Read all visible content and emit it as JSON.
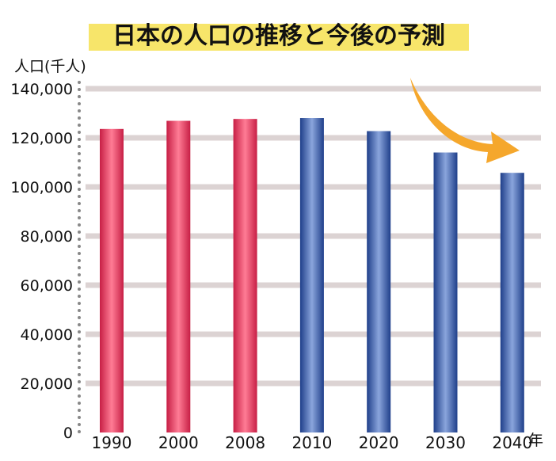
{
  "chart_data": {
    "type": "bar",
    "title": "日本の人口の推移と今後の予測",
    "ylabel": "人口(千人)",
    "xlabel": "年",
    "categories": [
      "1990",
      "2000",
      "2008",
      "2010",
      "2020",
      "2030",
      "2040"
    ],
    "series": [
      {
        "values": [
          123611,
          126926,
          127692,
          128057,
          122735,
          114025,
          105743
        ]
      }
    ],
    "period_type": [
      "actual",
      "actual",
      "actual",
      "forecast",
      "forecast",
      "forecast",
      "forecast"
    ],
    "ylim": [
      0,
      140000
    ],
    "yticks": [
      0,
      20000,
      40000,
      60000,
      80000,
      100000,
      120000,
      140000
    ],
    "ytick_labels": [
      "0",
      "20,000",
      "40,000",
      "60,000",
      "80,000",
      "100,000",
      "120,000",
      "140,000"
    ],
    "grid": true,
    "colors": {
      "actual": "#e8476a",
      "forecast": "#3e5fa8",
      "grid": "#dcd3d3",
      "title_highlight": "#f7e56a",
      "arrow": "#f5a72c",
      "axis_dots": "#888888"
    },
    "annotation": "downward-trend-arrow"
  }
}
